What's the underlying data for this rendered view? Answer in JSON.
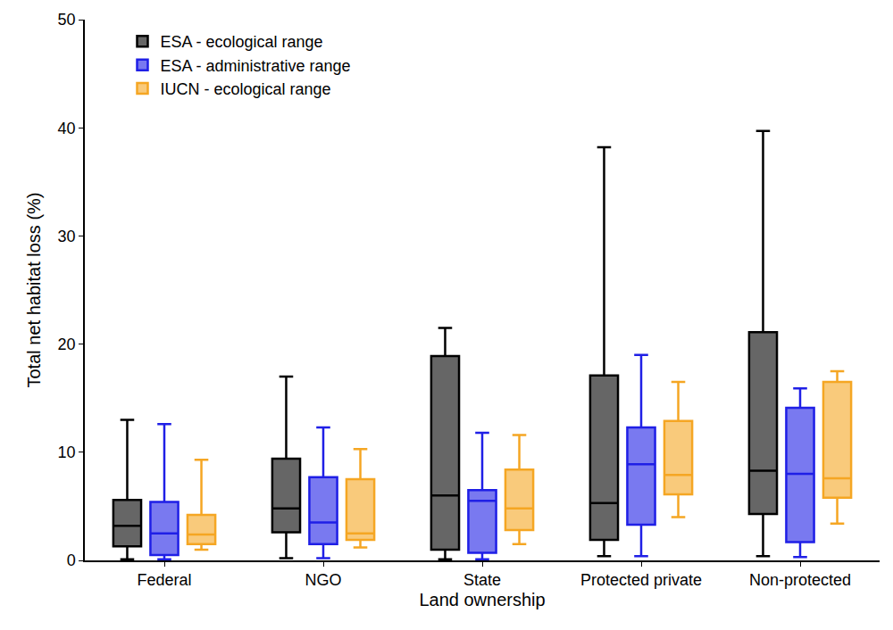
{
  "chart_data": {
    "type": "box",
    "x_label": "Land ownership",
    "y_label": "Total net habitat loss (%)",
    "categories": [
      "Federal",
      "NGO",
      "State",
      "Protected private",
      "Non-protected"
    ],
    "ylim": [
      0,
      50
    ],
    "yticks": [
      0,
      10,
      20,
      30,
      40,
      50
    ],
    "grid": false,
    "legend": "upper left",
    "series": [
      {
        "name": "ESA - ecological range",
        "color": "#000000",
        "whisker_low": [
          0.1,
          0.2,
          0.1,
          0.4,
          0.4
        ],
        "q1": [
          1.3,
          2.6,
          1.0,
          1.9,
          4.3
        ],
        "median": [
          3.2,
          4.8,
          6.0,
          5.3,
          8.3
        ],
        "q3": [
          5.6,
          9.4,
          18.9,
          17.1,
          21.1
        ],
        "whisker_high": [
          13.0,
          17.0,
          21.5,
          38.2,
          39.7
        ]
      },
      {
        "name": "ESA - administrative range",
        "color": "#1f1fe6",
        "whisker_low": [
          0.1,
          0.2,
          0.1,
          0.4,
          0.3
        ],
        "q1": [
          0.5,
          1.5,
          0.7,
          3.3,
          1.7
        ],
        "median": [
          2.5,
          3.5,
          5.5,
          8.9,
          8.0
        ],
        "q3": [
          5.4,
          7.7,
          6.5,
          12.3,
          14.1
        ],
        "whisker_high": [
          12.6,
          12.3,
          11.8,
          19.0,
          15.9
        ]
      },
      {
        "name": "IUCN - ecological range",
        "color": "#f5a623",
        "whisker_low": [
          1.0,
          1.2,
          1.5,
          4.0,
          3.4
        ],
        "q1": [
          1.5,
          1.9,
          2.8,
          6.1,
          5.8
        ],
        "median": [
          2.4,
          2.5,
          4.8,
          7.9,
          7.6
        ],
        "q3": [
          4.2,
          7.5,
          8.4,
          12.9,
          16.5
        ],
        "whisker_high": [
          9.3,
          10.3,
          11.6,
          16.5,
          17.5
        ]
      }
    ]
  }
}
